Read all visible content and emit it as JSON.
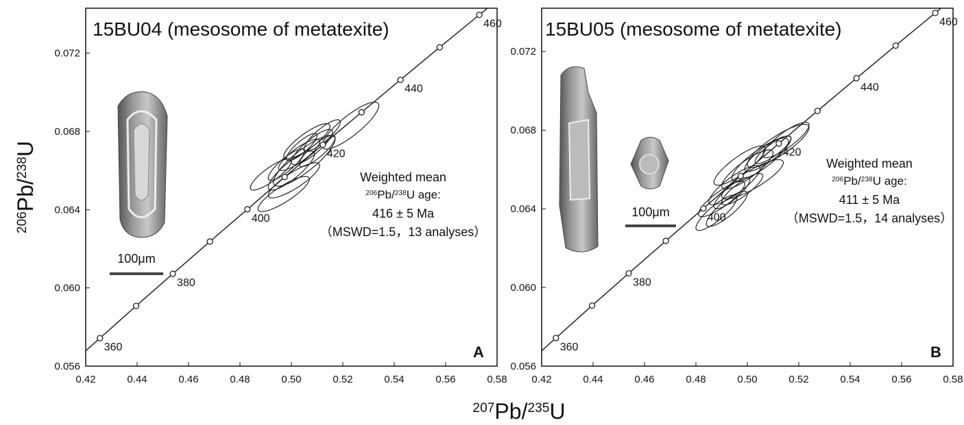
{
  "chart_data": [
    {
      "type": "concordia",
      "title": "15BU04 (mesosome of metatexite)",
      "panel_label": "A",
      "xlim": [
        0.42,
        0.58
      ],
      "ylim": [
        0.056,
        0.0743
      ],
      "xticks": [
        0.42,
        0.44,
        0.46,
        0.48,
        {
          "value": 0.5,
          "label": "0.50"
        },
        0.52,
        0.54,
        0.56,
        0.58
      ],
      "yticks": [
        0.056,
        {
          "value": 0.06,
          "label": "0.060"
        },
        0.064,
        0.068,
        0.072
      ],
      "ylabel_parts": [
        "206",
        "Pb/",
        "238",
        "U"
      ],
      "concordia": {
        "x": [
          0.42553,
          0.43962,
          0.45388,
          0.46831,
          0.4829,
          0.49741,
          0.51223,
          0.5273,
          0.54243,
          0.55767,
          0.57309
        ],
        "y": [
          0.05743,
          0.05908,
          0.06072,
          0.06237,
          0.06402,
          0.06567,
          0.06732,
          0.06898,
          0.07064,
          0.0723,
          0.07396
        ],
        "age_labels": [
          360,
          null,
          380,
          null,
          400,
          null,
          420,
          null,
          440,
          null,
          460
        ]
      },
      "ellipses": {
        "x": [
          0.523,
          0.505,
          0.508,
          0.503,
          0.506,
          0.5,
          0.51,
          0.498,
          0.512,
          0.501,
          0.497,
          0.504,
          0.492
        ],
        "y": [
          0.0683,
          0.0665,
          0.0672,
          0.0668,
          0.0675,
          0.066,
          0.067,
          0.0663,
          0.0678,
          0.0655,
          0.0648,
          0.0672,
          0.0658
        ],
        "x_err": [
          0.011,
          0.012,
          0.008,
          0.008,
          0.009,
          0.009,
          0.007,
          0.007,
          0.007,
          0.01,
          0.01,
          0.006,
          0.008
        ],
        "y_err": [
          0.0012,
          0.0013,
          0.0009,
          0.0008,
          0.0009,
          0.001,
          0.0008,
          0.0008,
          0.0008,
          0.0009,
          0.0009,
          0.0007,
          0.0008
        ],
        "error_correlation": 0.85
      },
      "annotation": {
        "line1": "Weighted mean",
        "line2_parts": [
          "206",
          "Pb/",
          "238",
          "U age:"
        ],
        "line3": "416 ± 5 Ma",
        "line4": "（MSWD=1.5，13 analyses）"
      },
      "scale_bar": "100μm"
    },
    {
      "type": "concordia",
      "title": "15BU05 (mesosome of metatexite)",
      "panel_label": "B",
      "xlim": [
        0.42,
        0.58
      ],
      "ylim": [
        0.056,
        0.0742
      ],
      "xticks": [
        0.42,
        0.44,
        0.46,
        0.48,
        {
          "value": 0.5,
          "label": "0.50"
        },
        0.52,
        0.54,
        0.56,
        0.58
      ],
      "yticks": [
        0.056,
        {
          "value": 0.06,
          "label": "0.060"
        },
        0.064,
        0.068,
        0.072
      ],
      "concordia": {
        "x": [
          0.42553,
          0.43962,
          0.45388,
          0.46831,
          0.4829,
          0.49741,
          0.51223,
          0.5273,
          0.54243,
          0.55767,
          0.57309
        ],
        "y": [
          0.05743,
          0.05908,
          0.06072,
          0.06237,
          0.06402,
          0.06567,
          0.06732,
          0.06898,
          0.07064,
          0.0723,
          0.07396
        ],
        "age_labels": [
          360,
          null,
          380,
          null,
          400,
          null,
          420,
          null,
          440,
          null,
          460
        ]
      },
      "ellipses": {
        "x": [
          0.512,
          0.505,
          0.5,
          0.515,
          0.495,
          0.49,
          0.492,
          0.498,
          0.508,
          0.488,
          0.502,
          0.497,
          0.51,
          0.494
        ],
        "y": [
          0.0672,
          0.0665,
          0.066,
          0.0675,
          0.0652,
          0.0645,
          0.064,
          0.065,
          0.0668,
          0.0638,
          0.0655,
          0.0662,
          0.067,
          0.0648
        ],
        "x_err": [
          0.012,
          0.011,
          0.01,
          0.009,
          0.01,
          0.009,
          0.008,
          0.008,
          0.009,
          0.008,
          0.012,
          0.01,
          0.007,
          0.007
        ],
        "y_err": [
          0.0011,
          0.0011,
          0.001,
          0.0009,
          0.001,
          0.0009,
          0.0009,
          0.0008,
          0.0009,
          0.0009,
          0.001,
          0.001,
          0.0007,
          0.0008
        ],
        "error_correlation": 0.85
      },
      "annotation": {
        "line1": "Weighted mean",
        "line2_parts": [
          "206",
          "Pb/",
          "238",
          "U age:"
        ],
        "line3": "411 ± 5 Ma",
        "line4": "（MSWD=1.5，14 analyses）"
      },
      "scale_bar": "100μm"
    }
  ],
  "shared_xlabel_parts": [
    "207",
    "Pb/",
    "235",
    "U"
  ]
}
